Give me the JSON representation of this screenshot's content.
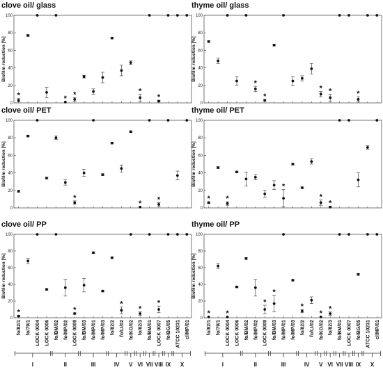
{
  "categories": [
    "fo/82/1",
    "fo/79/1",
    "LOCK 0004",
    "LOCK 0006",
    "fo/BM/02",
    "fo/MP/02",
    "LOCK 0009",
    "fo/BM/03",
    "fo/MP/01",
    "fo/MP/03",
    "fo/82/2",
    "fo/LI/02",
    "fo/KO/02",
    "fo/82/3",
    "fo/BM/01",
    "LOCK 0007",
    "fo/BG/05",
    "ATCC 10231",
    "cl/MP/01"
  ],
  "groups": [
    {
      "label": "I",
      "from": 0,
      "to": 3
    },
    {
      "label": "II",
      "from": 4,
      "to": 6
    },
    {
      "label": "III",
      "from": 7,
      "to": 9
    },
    {
      "label": "IV",
      "from": 10,
      "to": 11
    },
    {
      "label": "V",
      "from": 12,
      "to": 12
    },
    {
      "label": "VI",
      "from": 13,
      "to": 13
    },
    {
      "label": "VII",
      "from": 14,
      "to": 14
    },
    {
      "label": "VIII",
      "from": 15,
      "to": 15
    },
    {
      "label": "IX",
      "from": 16,
      "to": 16
    },
    {
      "label": "X",
      "from": 17,
      "to": 18
    }
  ],
  "chart_data": [
    {
      "type": "scatter",
      "title": "clove oil/ glass",
      "ylabel": "Biofilm reduction [%]",
      "ylim": [
        0,
        100
      ],
      "yticks": [
        0,
        20,
        40,
        60,
        80,
        100
      ],
      "values": [
        3,
        77,
        100,
        12,
        100,
        1,
        4,
        30,
        13,
        29,
        74,
        37,
        46,
        6,
        100,
        2,
        100,
        100,
        100
      ],
      "errors": [
        2,
        1,
        0,
        6,
        0,
        0.5,
        2,
        1.5,
        3,
        6,
        1,
        6,
        2,
        4,
        0,
        1,
        0,
        0,
        0
      ],
      "stars": [
        0,
        5,
        6,
        13,
        15
      ]
    },
    {
      "type": "scatter",
      "title": "thyme oil/ glass",
      "ylabel": "Biofilm reduction [%]",
      "ylim": [
        0,
        100
      ],
      "yticks": [
        0,
        20,
        40,
        60,
        80,
        100
      ],
      "values": [
        70,
        48,
        100,
        25,
        100,
        16,
        3,
        66,
        100,
        25,
        28,
        39,
        10,
        6,
        100,
        100,
        4,
        100,
        100
      ],
      "errors": [
        1,
        3,
        0,
        5,
        0,
        3,
        1,
        1,
        0,
        5,
        3,
        6,
        3,
        4,
        0,
        0,
        3,
        0,
        0
      ],
      "stars": [
        5,
        6,
        12,
        13,
        16
      ]
    },
    {
      "type": "scatter",
      "title": "clove oil/ PET",
      "ylabel": "Biofilm reduction [%]",
      "ylim": [
        0,
        100
      ],
      "yticks": [
        0,
        20,
        40,
        60,
        80,
        100
      ],
      "values": [
        19,
        82,
        100,
        34,
        80,
        29,
        6,
        40,
        100,
        38,
        74,
        45,
        87,
        1,
        100,
        4,
        100,
        37,
        100
      ],
      "errors": [
        1,
        1,
        0,
        1,
        2,
        3,
        2,
        4,
        0,
        1,
        1,
        4,
        1,
        0.5,
        0,
        2,
        0,
        5,
        0
      ],
      "stars": [
        6,
        13,
        15
      ]
    },
    {
      "type": "scatter",
      "title": "thyme oil/ PET",
      "ylabel": "Biofilm reduction [%]",
      "ylim": [
        0,
        100
      ],
      "yticks": [
        0,
        20,
        40,
        60,
        80,
        100
      ],
      "values": [
        6,
        46,
        5,
        41,
        33,
        35,
        16,
        26,
        11,
        50,
        23,
        53,
        6,
        1,
        100,
        100,
        32,
        69,
        100
      ],
      "errors": [
        1,
        1,
        2,
        1,
        8,
        3,
        4,
        5,
        10,
        1,
        1,
        3,
        3,
        1,
        0,
        0,
        8,
        2,
        0
      ],
      "stars": [
        0,
        2,
        8,
        12,
        13
      ]
    },
    {
      "type": "scatter",
      "title": "clove oil/ PP",
      "ylabel": "Biofilm reduction [%]",
      "ylim": [
        0,
        100
      ],
      "yticks": [
        0,
        20,
        40,
        60,
        80,
        100
      ],
      "values": [
        2,
        68,
        100,
        34,
        100,
        36,
        5,
        39,
        78,
        32,
        72,
        9,
        100,
        5,
        100,
        10,
        100,
        100,
        100
      ],
      "errors": [
        1,
        3,
        0,
        1,
        0,
        10,
        1,
        8,
        1,
        1,
        1,
        4,
        0,
        2,
        0,
        4,
        0,
        0,
        0
      ],
      "stars": [
        0,
        6,
        11,
        13,
        15
      ]
    },
    {
      "type": "scatter",
      "title": "thyme oil/ PP",
      "ylabel": "Biofilm reduction [%]",
      "ylim": [
        0,
        100
      ],
      "yticks": [
        0,
        20,
        40,
        60,
        80,
        100
      ],
      "values": [
        1,
        62,
        1,
        37,
        71,
        36,
        10,
        17,
        100,
        45,
        8,
        21,
        1,
        5,
        100,
        100,
        52,
        100,
        100
      ],
      "errors": [
        0.5,
        3,
        0.5,
        1,
        1,
        10,
        5,
        10,
        0,
        1,
        2,
        4,
        0.5,
        2,
        0,
        0,
        1,
        0,
        0
      ],
      "stars": [
        0,
        2,
        6,
        7,
        10,
        12,
        13
      ]
    }
  ]
}
